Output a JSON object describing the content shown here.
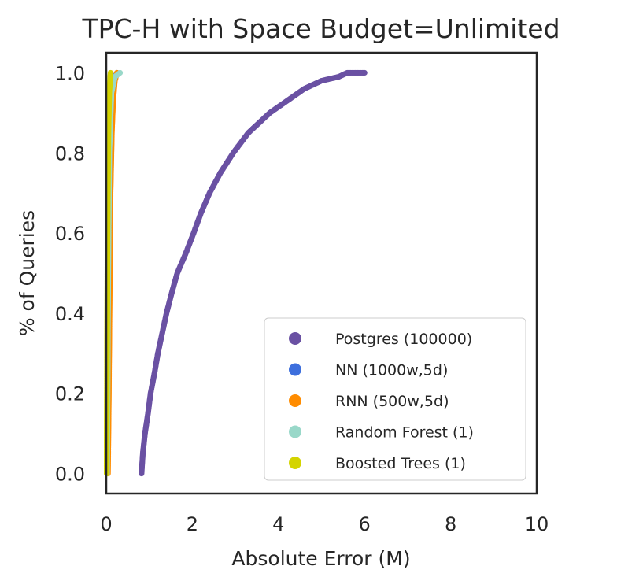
{
  "chart_data": {
    "type": "scatter",
    "title": "TPC-H with Space Budget=Unlimited",
    "xlabel": "Absolute Error (M)",
    "ylabel": "% of Queries",
    "xlim": [
      0,
      10
    ],
    "ylim": [
      -0.05,
      1.05
    ],
    "xticks": [
      "0",
      "2",
      "4",
      "6",
      "8",
      "10"
    ],
    "yticks": [
      "0.0",
      "0.2",
      "0.4",
      "0.6",
      "0.8",
      "1.0"
    ],
    "grid": false,
    "legend_position": "lower-right",
    "series": [
      {
        "name": "Postgres (100000)",
        "color": "#6a51a3",
        "points": [
          [
            0.82,
            0.0
          ],
          [
            0.85,
            0.05
          ],
          [
            0.9,
            0.1
          ],
          [
            0.97,
            0.15
          ],
          [
            1.03,
            0.2
          ],
          [
            1.12,
            0.25
          ],
          [
            1.2,
            0.3
          ],
          [
            1.3,
            0.35
          ],
          [
            1.4,
            0.4
          ],
          [
            1.52,
            0.45
          ],
          [
            1.65,
            0.5
          ],
          [
            1.85,
            0.55
          ],
          [
            2.03,
            0.6
          ],
          [
            2.2,
            0.65
          ],
          [
            2.4,
            0.7
          ],
          [
            2.65,
            0.75
          ],
          [
            2.95,
            0.8
          ],
          [
            3.3,
            0.85
          ],
          [
            3.6,
            0.88
          ],
          [
            3.8,
            0.9
          ],
          [
            4.2,
            0.93
          ],
          [
            4.6,
            0.96
          ],
          [
            5.0,
            0.98
          ],
          [
            5.4,
            0.99
          ],
          [
            5.6,
            1.0
          ],
          [
            6.0,
            1.0
          ]
        ]
      },
      {
        "name": "NN (1000w,5d)",
        "color": "#3d6fdd",
        "points": [
          [
            0.02,
            0.0
          ],
          [
            0.03,
            0.3
          ],
          [
            0.05,
            0.6
          ],
          [
            0.08,
            0.9
          ],
          [
            0.15,
            0.98
          ],
          [
            0.25,
            1.0
          ]
        ]
      },
      {
        "name": "RNN (500w,5d)",
        "color": "#ff8c00",
        "points": [
          [
            0.04,
            0.0
          ],
          [
            0.06,
            0.2
          ],
          [
            0.08,
            0.45
          ],
          [
            0.1,
            0.7
          ],
          [
            0.13,
            0.85
          ],
          [
            0.16,
            0.93
          ],
          [
            0.2,
            0.98
          ],
          [
            0.25,
            1.0
          ]
        ]
      },
      {
        "name": "Random Forest (1)",
        "color": "#99d8c9",
        "points": [
          [
            0.02,
            0.0
          ],
          [
            0.04,
            0.4
          ],
          [
            0.07,
            0.8
          ],
          [
            0.12,
            0.95
          ],
          [
            0.2,
            0.99
          ],
          [
            0.32,
            1.0
          ]
        ]
      },
      {
        "name": "Boosted Trees (1)",
        "color": "#d4d400",
        "points": [
          [
            0.01,
            0.0
          ],
          [
            0.02,
            0.3
          ],
          [
            0.03,
            0.6
          ],
          [
            0.05,
            0.85
          ],
          [
            0.07,
            0.95
          ],
          [
            0.1,
            1.0
          ]
        ]
      }
    ]
  }
}
